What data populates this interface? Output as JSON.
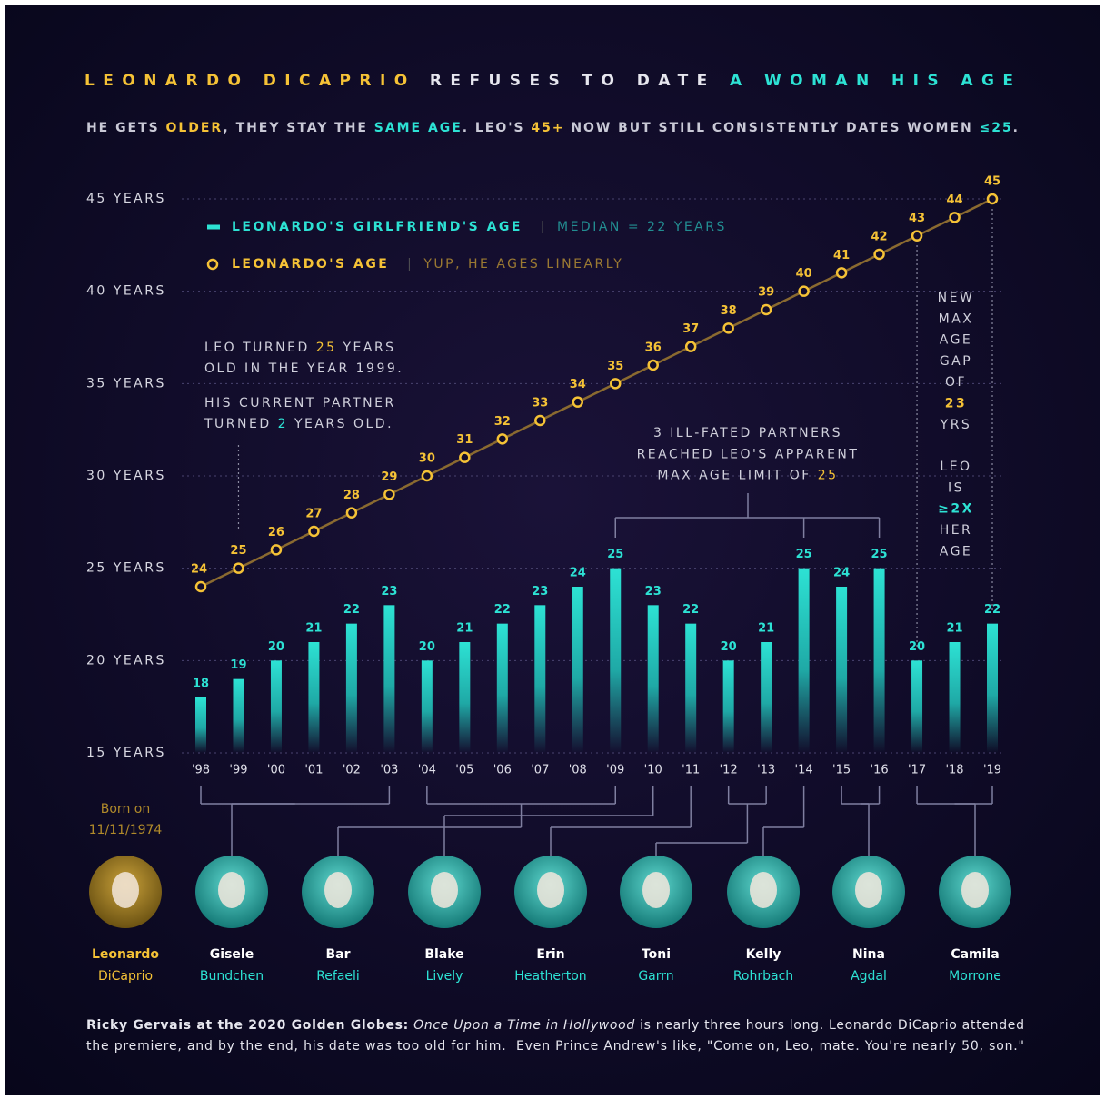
{
  "chart_data": {
    "type": "line_bar",
    "title": [
      {
        "text": "LEONARDO DICAPRIO",
        "color": "#f5c236"
      },
      {
        "text": " REFUSES TO DATE ",
        "color": "#e6e6ee"
      },
      {
        "text": "A WOMAN HIS AGE",
        "color": "#2de2d4"
      }
    ],
    "subtitle": [
      {
        "text": "HE GETS ",
        "color": "#c9c9d6"
      },
      {
        "text": "OLDER",
        "color": "#f5c236"
      },
      {
        "text": ", THEY STAY THE ",
        "color": "#c9c9d6"
      },
      {
        "text": "SAME AGE",
        "color": "#2de2d4"
      },
      {
        "text": ". LEO'S ",
        "color": "#c9c9d6"
      },
      {
        "text": "45+",
        "color": "#f5c236"
      },
      {
        "text": " NOW BUT STILL CONSISTENTLY DATES WOMEN ",
        "color": "#c9c9d6"
      },
      {
        "text": "≤25",
        "color": "#2de2d4"
      },
      {
        "text": ".",
        "color": "#c9c9d6"
      }
    ],
    "categories": [
      "'98",
      "'99",
      "'00",
      "'01",
      "'02",
      "'03",
      "'04",
      "'05",
      "'06",
      "'07",
      "'08",
      "'09",
      "'10",
      "'11",
      "'12",
      "'13",
      "'14",
      "'15",
      "'16",
      "'17",
      "'18",
      "'19"
    ],
    "series": [
      {
        "name": "LEONARDO'S GIRLFRIEND'S AGE",
        "note": "MEDIAN = 22 YEARS",
        "color": "#2de2d4",
        "type": "bar",
        "values": [
          18,
          19,
          20,
          21,
          22,
          23,
          20,
          21,
          22,
          23,
          24,
          25,
          23,
          22,
          20,
          21,
          25,
          24,
          25,
          20,
          21,
          22
        ]
      },
      {
        "name": "LEONARDO'S AGE",
        "note": "YUP, HE AGES LINEARLY",
        "color": "#f5c236",
        "type": "line",
        "values": [
          24,
          25,
          26,
          27,
          28,
          29,
          30,
          31,
          32,
          33,
          34,
          35,
          36,
          37,
          38,
          39,
          40,
          41,
          42,
          43,
          44,
          45
        ]
      }
    ],
    "ylim": [
      15,
      45
    ],
    "yticks": [
      {
        "value": 45,
        "label": "45 YEARS"
      },
      {
        "value": 40,
        "label": "40 YEARS"
      },
      {
        "value": 35,
        "label": "35 YEARS"
      },
      {
        "value": 30,
        "label": "30 YEARS"
      },
      {
        "value": 25,
        "label": "25 YEARS"
      },
      {
        "value": 20,
        "label": "20 YEARS"
      },
      {
        "value": 15,
        "label": "15 YEARS"
      }
    ],
    "grid": true,
    "annotations": {
      "left": [
        [
          {
            "text": "LEO TURNED ",
            "color": "#d0d0dc"
          },
          {
            "text": "25",
            "color": "#f5c236"
          },
          {
            "text": " YEARS",
            "color": "#d0d0dc"
          }
        ],
        [
          {
            "text": "OLD IN THE YEAR 1999.",
            "color": "#d0d0dc"
          }
        ],
        [
          {
            "text": "HIS CURRENT PARTNER",
            "color": "#d0d0dc"
          }
        ],
        [
          {
            "text": "TURNED ",
            "color": "#d0d0dc"
          },
          {
            "text": "2",
            "color": "#2de2d4"
          },
          {
            "text": " YEARS OLD.",
            "color": "#d0d0dc"
          }
        ]
      ],
      "center": [
        [
          {
            "text": "3 ILL-FATED PARTNERS",
            "color": "#d0d0dc"
          }
        ],
        [
          {
            "text": "REACHED LEO'S APPARENT",
            "color": "#d0d0dc"
          }
        ],
        [
          {
            "text": "MAX AGE LIMIT OF ",
            "color": "#d0d0dc"
          },
          {
            "text": "25",
            "color": "#f5c236"
          }
        ]
      ],
      "right": [
        {
          "text": "NEW",
          "color": "#d0d0dc"
        },
        {
          "text": "MAX",
          "color": "#d0d0dc"
        },
        {
          "text": "AGE",
          "color": "#d0d0dc"
        },
        {
          "text": "GAP",
          "color": "#d0d0dc"
        },
        {
          "text": "OF",
          "color": "#d0d0dc"
        },
        {
          "text": "23",
          "color": "#f5c236"
        },
        {
          "text": "YRS",
          "color": "#d0d0dc"
        },
        {
          "text": "LEO",
          "color": "#d0d0dc"
        },
        {
          "text": "IS",
          "color": "#d0d0dc"
        },
        {
          "text": "≥2X",
          "color": "#2de2d4"
        },
        {
          "text": "HER",
          "color": "#d0d0dc"
        },
        {
          "text": "AGE",
          "color": "#d0d0dc"
        }
      ]
    },
    "born": [
      "Born on",
      "11/11/1974"
    ],
    "people": [
      {
        "first": "Leonardo",
        "last": "DiCaprio",
        "color": "#f5c236"
      },
      {
        "first": "Gisele",
        "last": "Bundchen",
        "color": "#2de2d4"
      },
      {
        "first": "Bar",
        "last": "Refaeli",
        "color": "#2de2d4"
      },
      {
        "first": "Blake",
        "last": "Lively",
        "color": "#2de2d4"
      },
      {
        "first": "Erin",
        "last": "Heatherton",
        "color": "#2de2d4"
      },
      {
        "first": "Toni",
        "last": "Garrn",
        "color": "#2de2d4"
      },
      {
        "first": "Kelly",
        "last": "Rohrbach",
        "color": "#2de2d4"
      },
      {
        "first": "Nina",
        "last": "Agdal",
        "color": "#2de2d4"
      },
      {
        "first": "Camila",
        "last": "Morrone",
        "color": "#2de2d4"
      }
    ],
    "footer": [
      [
        {
          "text": "Ricky Gervais at the 2020 Golden Globes:",
          "style": "bold"
        },
        {
          "text": " Once Upon a Time in Hollywood",
          "style": "italic"
        },
        {
          "text": " is nearly three hours long. Leonardo DiCaprio attended",
          "style": "normal"
        }
      ],
      [
        {
          "text": "the premiere, and by the end, his date was too old for him.  Even Prince Andrew's like, \"Come on, Leo, mate. You're nearly 50, son.\"",
          "style": "normal"
        }
      ]
    ]
  }
}
